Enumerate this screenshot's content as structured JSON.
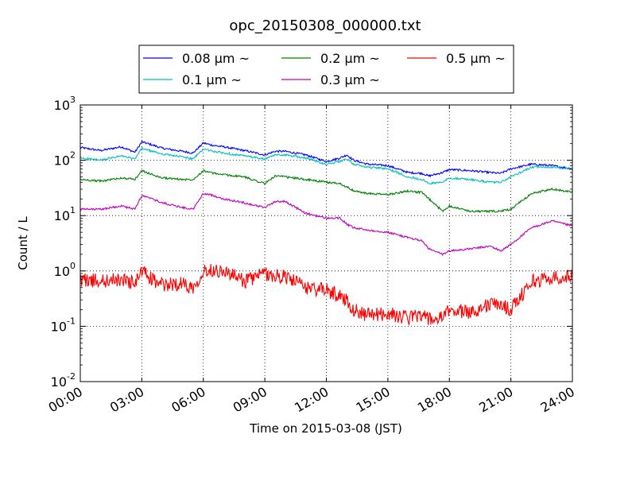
{
  "chart_data": {
    "type": "line",
    "title": "opc_20150308_000000.txt",
    "xlabel": "Time on 2015-03-08 (JST)",
    "ylabel": "Count / L",
    "y_scale": "log",
    "ylim": [
      0.01,
      1000
    ],
    "xlim": [
      "00:00",
      "24:00"
    ],
    "x_ticks": [
      "00:00",
      "03:00",
      "06:00",
      "09:00",
      "12:00",
      "15:00",
      "18:00",
      "21:00",
      "24:00"
    ],
    "y_ticks": [
      {
        "base": "10",
        "exp": "-2"
      },
      {
        "base": "10",
        "exp": "-1"
      },
      {
        "base": "10",
        "exp": "0"
      },
      {
        "base": "10",
        "exp": "1"
      },
      {
        "base": "10",
        "exp": "2"
      },
      {
        "base": "10",
        "exp": "3"
      }
    ],
    "grid": true,
    "legend_position": "top-center, above plot",
    "x": [
      "00:00",
      "01:00",
      "02:00",
      "02:40",
      "03:00",
      "03:30",
      "04:00",
      "05:00",
      "05:30",
      "06:00",
      "06:30",
      "07:00",
      "08:00",
      "09:00",
      "09:30",
      "10:00",
      "11:00",
      "12:00",
      "12:40",
      "13:00",
      "13:20",
      "14:00",
      "15:00",
      "16:00",
      "16:40",
      "17:00",
      "17:40",
      "18:00",
      "19:00",
      "20:00",
      "20:30",
      "21:00",
      "22:00",
      "23:00",
      "24:00"
    ],
    "series": [
      {
        "name": "0.08 μm ~",
        "color": "#0000ff",
        "values": [
          170,
          150,
          175,
          140,
          215,
          190,
          165,
          145,
          135,
          205,
          185,
          175,
          150,
          125,
          145,
          145,
          125,
          95,
          110,
          125,
          100,
          85,
          80,
          60,
          58,
          52,
          60,
          68,
          65,
          60,
          58,
          70,
          85,
          80,
          70
        ]
      },
      {
        "name": "0.1 μm ~",
        "color": "#00bfbf",
        "values": [
          110,
          100,
          120,
          105,
          165,
          145,
          130,
          115,
          105,
          160,
          145,
          135,
          120,
          105,
          125,
          125,
          110,
          85,
          95,
          105,
          85,
          75,
          70,
          50,
          45,
          38,
          40,
          48,
          45,
          40,
          40,
          50,
          75,
          75,
          70
        ]
      },
      {
        "name": "0.2 μm ~",
        "color": "#008000",
        "values": [
          45,
          42,
          48,
          45,
          65,
          55,
          48,
          45,
          45,
          65,
          58,
          55,
          50,
          38,
          52,
          50,
          45,
          40,
          38,
          33,
          28,
          25,
          24,
          28,
          26,
          20,
          12,
          15,
          12,
          12,
          12,
          13,
          25,
          30,
          27
        ]
      },
      {
        "name": "0.3 μm ~",
        "color": "#bf00bf",
        "values": [
          13,
          13,
          15,
          13,
          23,
          20,
          17,
          14,
          13,
          25,
          23,
          20,
          17,
          14,
          18,
          18,
          11,
          9,
          9,
          7,
          6,
          5.5,
          5,
          4,
          3.5,
          2.5,
          2,
          2.3,
          2.5,
          2.8,
          2.3,
          3,
          6,
          8,
          6.5
        ]
      },
      {
        "name": "0.5 μm ~",
        "color": "#ff0000",
        "values": [
          0.7,
          0.65,
          0.7,
          0.6,
          1.0,
          0.7,
          0.55,
          0.6,
          0.5,
          1.0,
          1.05,
          1.0,
          0.65,
          0.9,
          0.8,
          0.8,
          0.5,
          0.45,
          0.35,
          0.3,
          0.2,
          0.16,
          0.17,
          0.14,
          0.17,
          0.13,
          0.14,
          0.2,
          0.18,
          0.25,
          0.25,
          0.2,
          0.65,
          0.75,
          0.8
        ]
      }
    ]
  }
}
